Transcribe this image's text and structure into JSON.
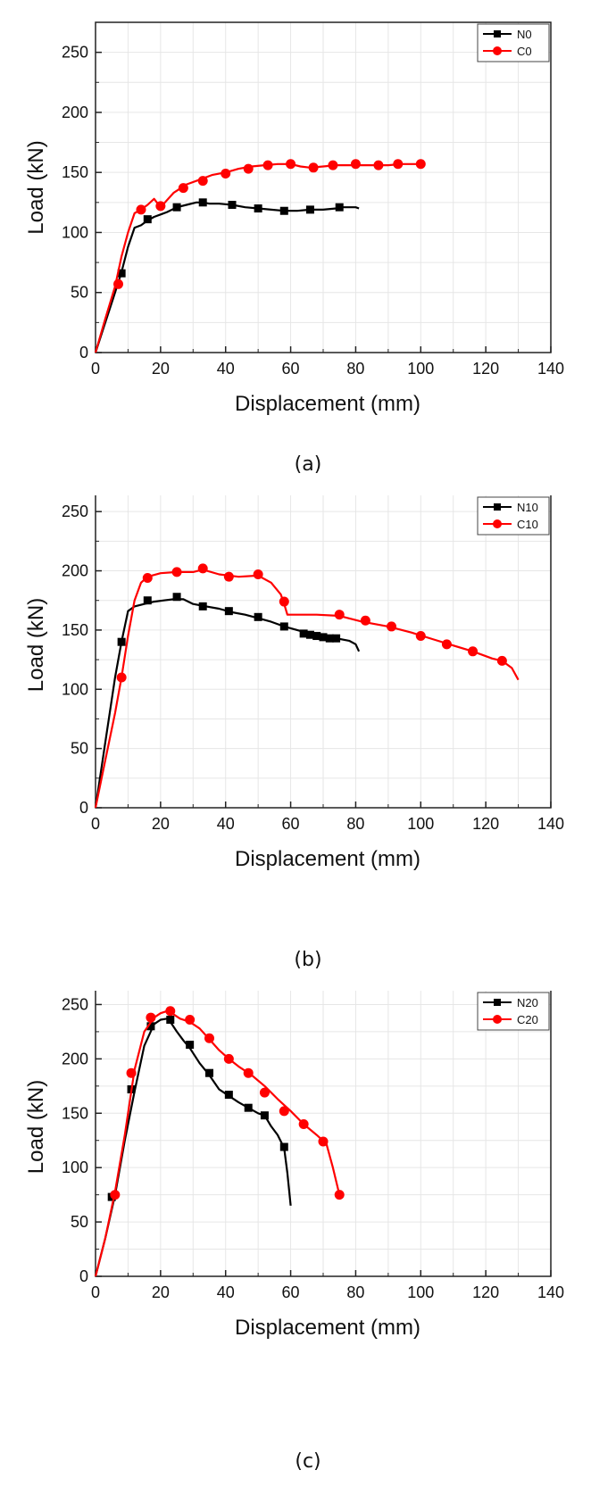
{
  "chart_data": [
    {
      "type": "line",
      "caption": "(a)",
      "xlabel": "Displacement (mm)",
      "ylabel": "Load (kN)",
      "xlim": [
        0,
        140
      ],
      "ylim": [
        0,
        275
      ],
      "xticks": [
        "0",
        "20",
        "40",
        "60",
        "80",
        "100",
        "120",
        "140"
      ],
      "yticks": [
        "0",
        "50",
        "100",
        "150",
        "200",
        "250"
      ],
      "grid": true,
      "legend_position": "top-right",
      "series": [
        {
          "name": "N0",
          "color": "#000000",
          "marker": "square",
          "x": [
            0,
            3,
            6,
            8,
            10,
            12,
            14,
            16,
            18,
            20,
            22,
            25,
            28,
            31,
            33,
            35,
            38,
            42,
            46,
            50,
            54,
            58,
            62,
            66,
            70,
            74,
            76,
            78,
            80,
            81
          ],
          "y": [
            0,
            25,
            50,
            67,
            88,
            104,
            106,
            110,
            113,
            115,
            117,
            121,
            123,
            125,
            125,
            124,
            124,
            123,
            121,
            120,
            119,
            118,
            118,
            119,
            119,
            120,
            121,
            121,
            121,
            120
          ],
          "markers_x": [
            8,
            16,
            25,
            33,
            42,
            50,
            58,
            66,
            75
          ],
          "markers_y": [
            66,
            111,
            121,
            125,
            123,
            120,
            118,
            119,
            121
          ]
        },
        {
          "name": "C0",
          "color": "#ff0000",
          "marker": "circle",
          "x": [
            0,
            3,
            6,
            8,
            10,
            12,
            14,
            16,
            18,
            20,
            24,
            28,
            32,
            36,
            40,
            44,
            48,
            52,
            56,
            60,
            63,
            66,
            70,
            74,
            78,
            82,
            86,
            90,
            94,
            98,
            100
          ],
          "y": [
            0,
            28,
            55,
            80,
            100,
            116,
            119,
            123,
            128,
            121,
            133,
            140,
            144,
            148,
            150,
            153,
            155,
            156,
            157,
            157,
            155,
            154,
            155,
            156,
            156,
            156,
            156,
            156,
            157,
            157,
            157
          ],
          "markers_x": [
            7,
            14,
            20,
            27,
            33,
            40,
            47,
            53,
            60,
            67,
            73,
            80,
            87,
            93,
            100
          ],
          "markers_y": [
            57,
            119,
            122,
            137,
            143,
            149,
            153,
            156,
            157,
            154,
            156,
            157,
            156,
            157,
            157
          ]
        }
      ]
    },
    {
      "type": "line",
      "caption": "(b)",
      "xlabel": "Displacement (mm)",
      "ylabel": "Load (kN)",
      "xlim": [
        0,
        140
      ],
      "ylim": [
        0,
        275
      ],
      "xticks": [
        "0",
        "20",
        "40",
        "60",
        "80",
        "100",
        "120",
        "140"
      ],
      "yticks": [
        "0",
        "50",
        "100",
        "150",
        "200",
        "250"
      ],
      "grid": true,
      "legend_position": "top-right",
      "series": [
        {
          "name": "N10",
          "color": "#000000",
          "marker": "square",
          "x": [
            0,
            3,
            6,
            8,
            10,
            12,
            15,
            18,
            21,
            24,
            27,
            30,
            34,
            38,
            42,
            46,
            50,
            54,
            58,
            62,
            66,
            70,
            74,
            78,
            80,
            81
          ],
          "y": [
            0,
            55,
            110,
            140,
            166,
            170,
            172,
            174,
            175,
            176,
            176,
            172,
            170,
            168,
            165,
            163,
            160,
            157,
            153,
            150,
            147,
            145,
            143,
            141,
            138,
            132
          ],
          "markers_x": [
            8,
            16,
            25,
            33,
            41,
            50,
            58,
            64,
            66,
            68,
            70,
            72,
            74
          ],
          "markers_y": [
            140,
            175,
            178,
            170,
            166,
            161,
            153,
            147,
            146,
            145,
            144,
            143,
            143
          ]
        },
        {
          "name": "C10",
          "color": "#ff0000",
          "marker": "circle",
          "x": [
            0,
            3,
            6,
            8,
            10,
            12,
            14,
            16,
            20,
            25,
            30,
            33,
            38,
            44,
            50,
            54,
            57,
            58,
            59,
            62,
            68,
            75,
            82,
            90,
            97,
            104,
            110,
            116,
            122,
            125,
            128,
            130
          ],
          "y": [
            0,
            40,
            80,
            110,
            145,
            175,
            190,
            195,
            198,
            199,
            199,
            201,
            197,
            195,
            196,
            190,
            180,
            172,
            163,
            163,
            163,
            162,
            157,
            153,
            148,
            142,
            137,
            132,
            126,
            124,
            118,
            108
          ],
          "markers_x": [
            8,
            16,
            25,
            33,
            41,
            50,
            58,
            75,
            83,
            91,
            100,
            108,
            116,
            125
          ],
          "markers_y": [
            110,
            194,
            199,
            202,
            195,
            197,
            174,
            163,
            158,
            153,
            145,
            138,
            132,
            124
          ]
        }
      ]
    },
    {
      "type": "line",
      "caption": "(c)",
      "xlabel": "Displacement (mm)",
      "ylabel": "Load (kN)",
      "xlim": [
        0,
        140
      ],
      "ylim": [
        0,
        275
      ],
      "xticks": [
        "0",
        "20",
        "40",
        "60",
        "80",
        "100",
        "120",
        "140"
      ],
      "yticks": [
        "0",
        "50",
        "100",
        "150",
        "200",
        "250"
      ],
      "grid": true,
      "legend_position": "top-right",
      "series": [
        {
          "name": "N20",
          "color": "#000000",
          "marker": "square",
          "x": [
            0,
            3,
            6,
            9,
            12,
            15,
            18,
            20,
            22,
            23,
            25,
            27,
            29,
            32,
            35,
            38,
            41,
            44,
            47,
            50,
            52,
            54,
            56,
            58,
            59,
            60
          ],
          "y": [
            0,
            35,
            75,
            125,
            170,
            212,
            232,
            236,
            237,
            234,
            225,
            217,
            210,
            196,
            185,
            172,
            166,
            160,
            155,
            150,
            148,
            138,
            130,
            118,
            95,
            65
          ],
          "markers_x": [
            5,
            11,
            17,
            23,
            29,
            35,
            41,
            47,
            52,
            58
          ],
          "markers_y": [
            73,
            172,
            230,
            236,
            213,
            187,
            167,
            155,
            148,
            119
          ]
        },
        {
          "name": "C20",
          "color": "#ff0000",
          "marker": "circle",
          "x": [
            0,
            3,
            6,
            9,
            12,
            15,
            18,
            20,
            22,
            24,
            26,
            29,
            32,
            35,
            38,
            41,
            44,
            48,
            52,
            56,
            60,
            64,
            68,
            71,
            73,
            75
          ],
          "y": [
            0,
            35,
            78,
            130,
            190,
            225,
            238,
            242,
            244,
            241,
            237,
            234,
            228,
            218,
            208,
            200,
            193,
            185,
            175,
            163,
            152,
            140,
            130,
            122,
            100,
            75
          ],
          "markers_x": [
            6,
            11,
            17,
            23,
            29,
            35,
            41,
            47,
            52,
            58,
            64,
            70,
            75
          ],
          "markers_y": [
            75,
            187,
            238,
            244,
            236,
            219,
            200,
            187,
            169,
            152,
            140,
            124,
            75
          ]
        }
      ]
    }
  ]
}
